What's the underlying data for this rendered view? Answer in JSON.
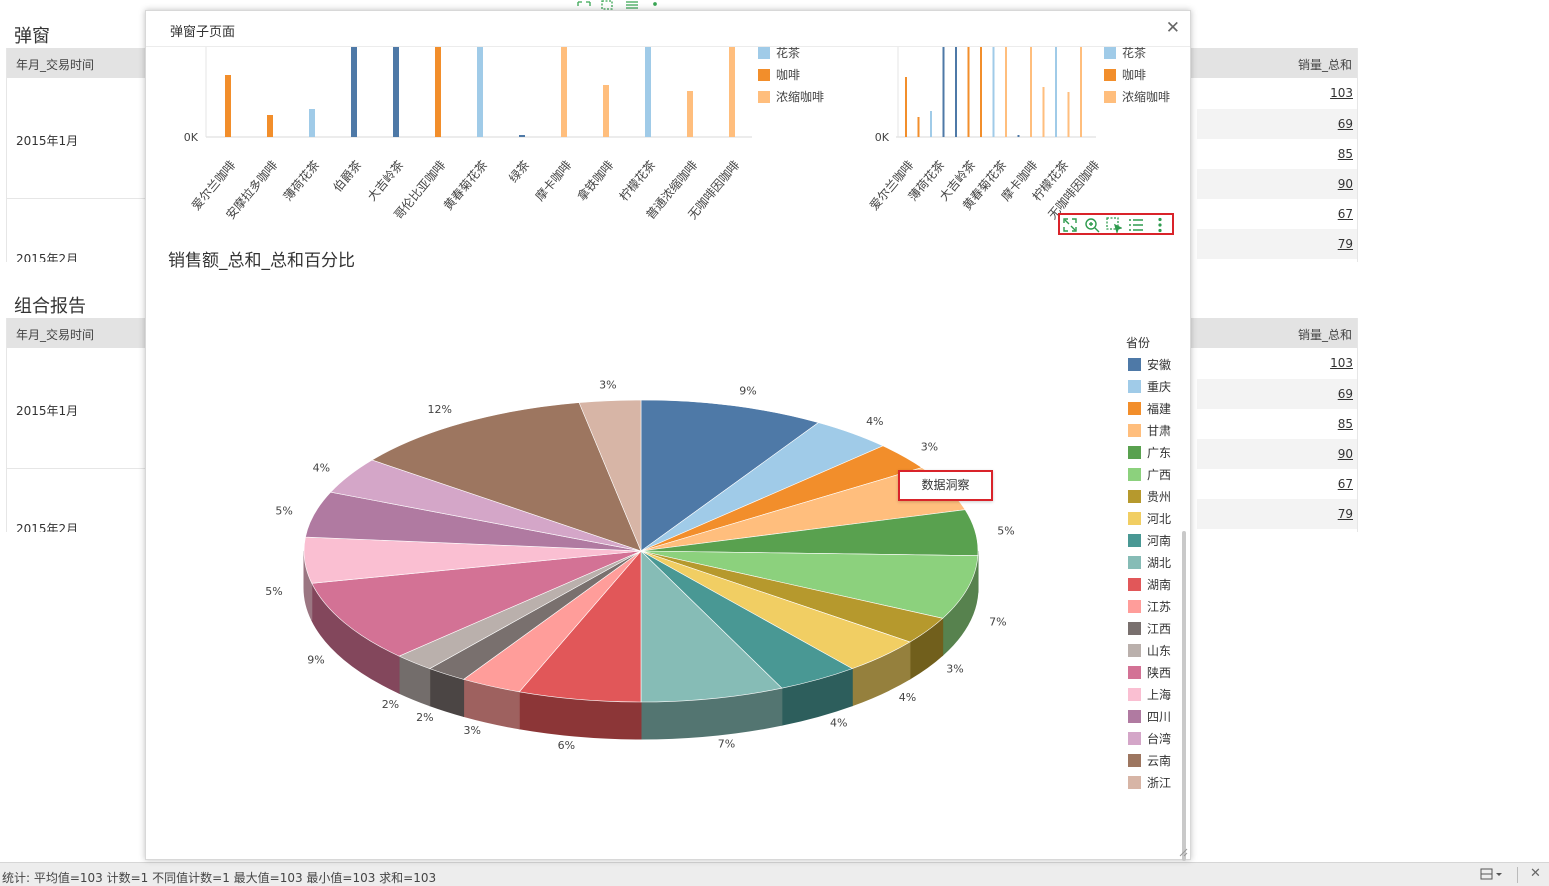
{
  "background": {
    "section1_title": "弹窗",
    "section2_title": "组合报告",
    "col_date": "年月_交易时间",
    "col_qty": "销量_总和",
    "row_labels": [
      "2015年1月",
      "2015年2月"
    ],
    "values": [
      "103",
      "69",
      "85",
      "90",
      "67",
      "79"
    ]
  },
  "statusbar": {
    "text": "统计: 平均值=103 计数=1 不同值计数=1 最大值=103 最小值=103 求和=103"
  },
  "modal": {
    "title": "弹窗子页面",
    "close_icon": "close-icon"
  },
  "bar_charts": {
    "left_x_labels": [
      "爱尔兰咖啡",
      "安摩拉多咖啡",
      "薄荷花茶",
      "伯爵茶",
      "大吉岭茶",
      "哥伦比亚咖啡",
      "黄春菊花茶",
      "绿茶",
      "摩卡咖啡",
      "拿铁咖啡",
      "柠檬花茶",
      "普通浓缩咖啡",
      "无咖啡因咖啡"
    ],
    "right_x_labels": [
      "爱尔兰咖啡",
      "薄荷花茶",
      "大吉岭茶",
      "黄春菊花茶",
      "摩卡咖啡",
      "柠檬花茶",
      "无咖啡因咖啡"
    ],
    "y_tick": "0K",
    "legend": [
      {
        "name": "花茶",
        "color": "#a0cbe8"
      },
      {
        "name": "咖啡",
        "color": "#f28e2b"
      },
      {
        "name": "浓缩咖啡",
        "color": "#ffbe7d"
      }
    ]
  },
  "toolbar": {
    "icons": [
      "fullscreen-icon",
      "zoom-icon",
      "select-icon",
      "list-icon",
      "more-icon"
    ]
  },
  "tooltip": {
    "label": "数据洞察"
  },
  "chart_data": {
    "type": "pie",
    "title": "销售额_总和_总和百分比",
    "legend_title": "省份",
    "legend_position": "right",
    "slices": [
      {
        "name": "安徽",
        "value": 9,
        "label": "9%",
        "color": "#4e79a7"
      },
      {
        "name": "重庆",
        "value": 4,
        "label": "4%",
        "color": "#a0cbe8"
      },
      {
        "name": "福建",
        "value": 3,
        "label": "3%",
        "color": "#f28e2b"
      },
      {
        "name": "甘肃",
        "value": 5,
        "label": "",
        "color": "#ffbe7d"
      },
      {
        "name": "广东",
        "value": 5,
        "label": "5%",
        "color": "#59a14f"
      },
      {
        "name": "广西",
        "value": 7,
        "label": "7%",
        "color": "#8cd17d"
      },
      {
        "name": "贵州",
        "value": 3,
        "label": "3%",
        "color": "#b6992d"
      },
      {
        "name": "河北",
        "value": 4,
        "label": "4%",
        "color": "#f1ce63"
      },
      {
        "name": "河南",
        "value": 4,
        "label": "4%",
        "color": "#499894"
      },
      {
        "name": "湖北",
        "value": 7,
        "label": "7%",
        "color": "#86bcb6"
      },
      {
        "name": "湖南",
        "value": 6,
        "label": "6%",
        "color": "#e15759"
      },
      {
        "name": "江苏",
        "value": 3,
        "label": "3%",
        "color": "#ff9d9a"
      },
      {
        "name": "江西",
        "value": 2,
        "label": "2%",
        "color": "#79706e"
      },
      {
        "name": "山东",
        "value": 2,
        "label": "2%",
        "color": "#bab0ac"
      },
      {
        "name": "陕西",
        "value": 9,
        "label": "9%",
        "color": "#d37295"
      },
      {
        "name": "上海",
        "value": 5,
        "label": "5%",
        "color": "#fabfd2"
      },
      {
        "name": "四川",
        "value": 5,
        "label": "5%",
        "color": "#b07aa1"
      },
      {
        "name": "台湾",
        "value": 4,
        "label": "4%",
        "color": "#d4a6c8"
      },
      {
        "name": "云南",
        "value": 12,
        "label": "12%",
        "color": "#9d7660"
      },
      {
        "name": "浙江",
        "value": 3,
        "label": "3%",
        "color": "#d7b5a6"
      }
    ]
  }
}
